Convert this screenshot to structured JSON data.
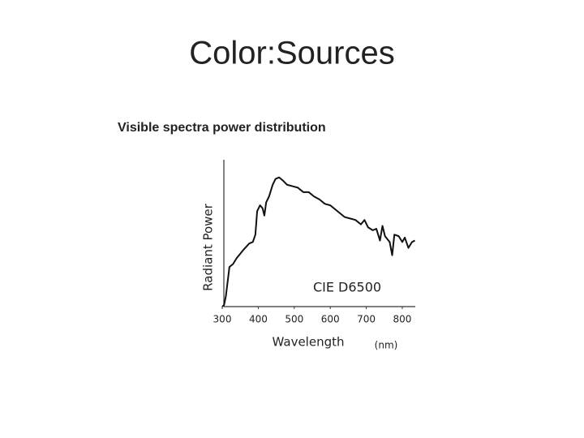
{
  "slide": {
    "title": "Color:Sources"
  },
  "chart_data": {
    "type": "line",
    "title": "Visible spectra power distribution",
    "xlabel": "Wavelength",
    "ylabel": "Radiant Power",
    "annotations": [
      "(nm)",
      "CIE D6500"
    ],
    "x": [
      300,
      305,
      310,
      320,
      330,
      340,
      350,
      360,
      375,
      385,
      392,
      397,
      405,
      412,
      417,
      422,
      430,
      440,
      448,
      458,
      468,
      480,
      495,
      510,
      525,
      540,
      555,
      570,
      585,
      600,
      620,
      640,
      655,
      670,
      685,
      695,
      705,
      718,
      728,
      738,
      745,
      752,
      765,
      772,
      778,
      790,
      800,
      807,
      817,
      827,
      835
    ],
    "series": [
      {
        "color": "#111111",
        "values": [
          0,
          1,
          7,
          27,
          29,
          33,
          36,
          39,
          43,
          44,
          49,
          65,
          69,
          67,
          62,
          71,
          75,
          83,
          87,
          88,
          86,
          83,
          82,
          81,
          78,
          78,
          75,
          73,
          70,
          69,
          65,
          61,
          60,
          59,
          56,
          59,
          54,
          52,
          53,
          45,
          55,
          48,
          44,
          35,
          49,
          48,
          44,
          47,
          40,
          44,
          45
        ]
      }
    ],
    "xlim": [
      300,
      835
    ],
    "xticks": [
      300,
      400,
      500,
      600,
      700,
      800
    ],
    "ylim": [
      0,
      100
    ]
  }
}
